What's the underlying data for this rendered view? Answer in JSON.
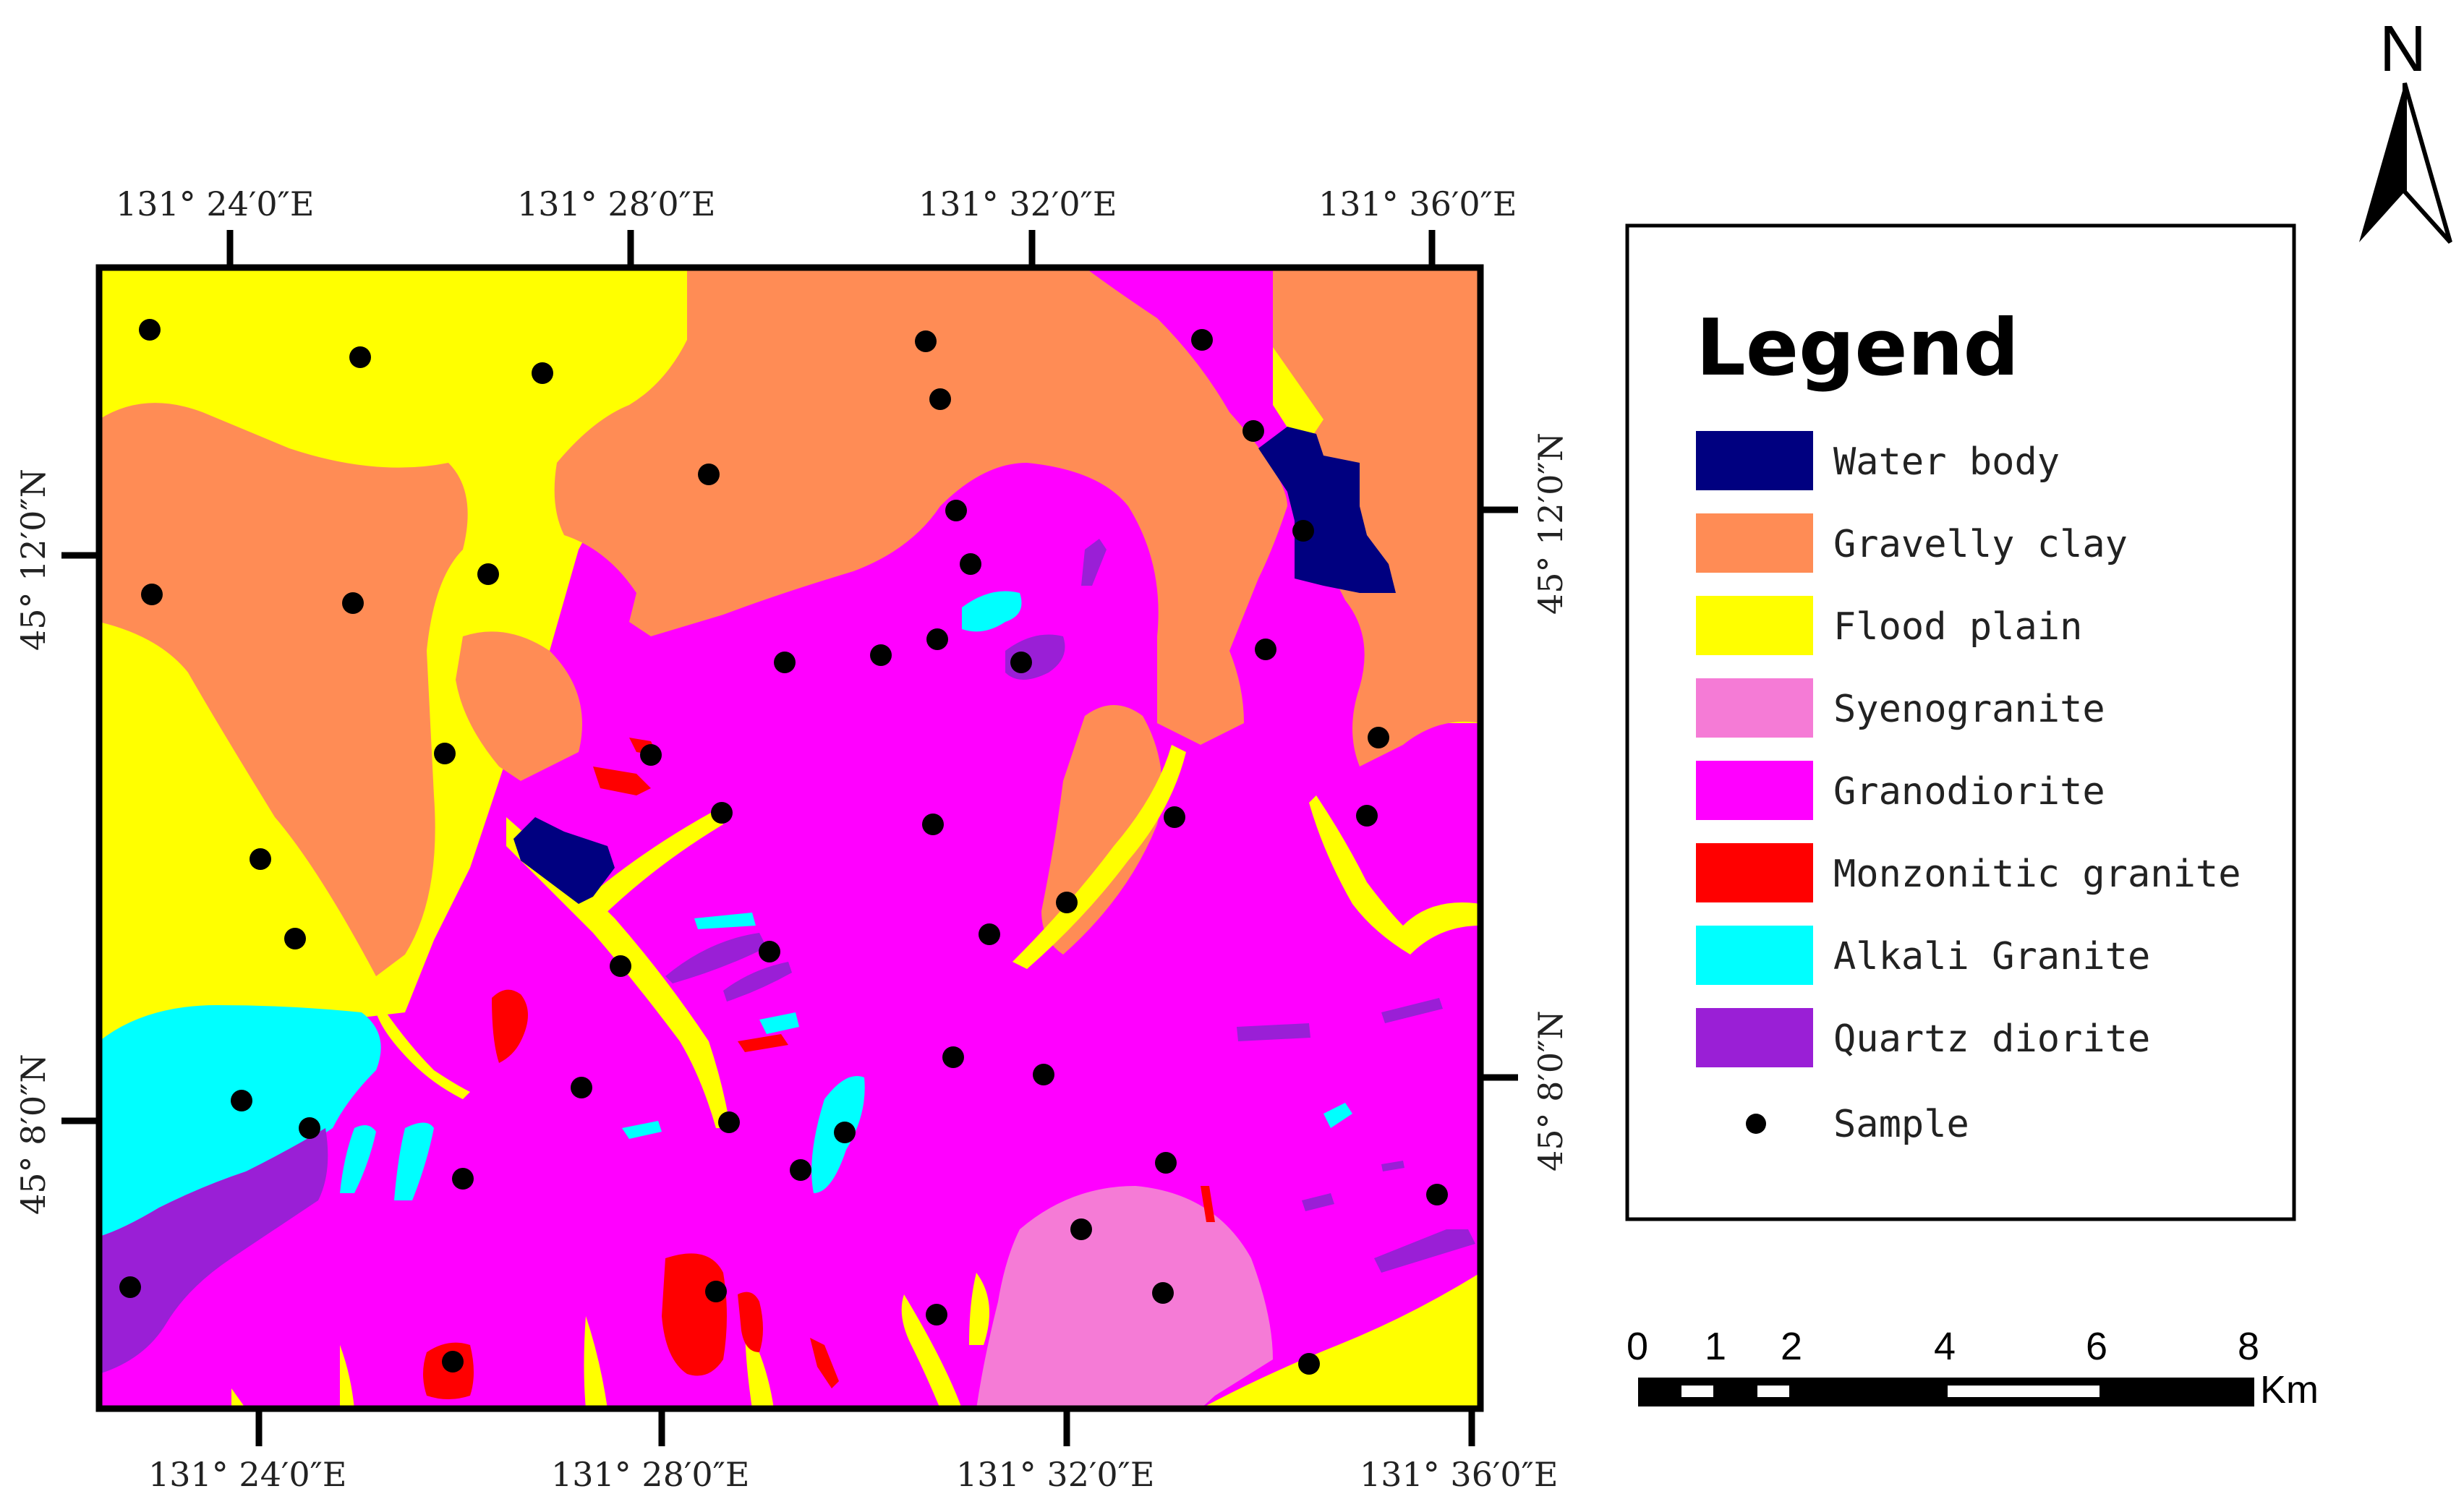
{
  "colors": {
    "water_body": "#000080",
    "gravelly_clay": "#FF8C55",
    "flood_plain": "#FFFF00",
    "syenogranite": "#F57BD6",
    "granodiorite": "#FF00FF",
    "monzonitic_granite": "#FF0000",
    "alkali_granite": "#00FFFF",
    "quartz_diorite": "#9A1FD6",
    "sample": "#000000"
  },
  "coords": {
    "top": [
      "131° 24′0″E",
      "131° 28′0″E",
      "131° 32′0″E",
      "131° 36′0″E"
    ],
    "bottom": [
      "131° 24′0″E",
      "131° 28′0″E",
      "131° 32′0″E",
      "131° 36′0″E"
    ],
    "left": [
      "45° 12′0″N",
      "45° 8′0″N"
    ],
    "right": [
      "45° 12′0″N",
      "45° 8′0″N"
    ]
  },
  "legend": {
    "title": "Legend",
    "items": [
      {
        "label": "Water body",
        "color": "#000080"
      },
      {
        "label": "Gravelly clay",
        "color": "#FF8C55"
      },
      {
        "label": "Flood plain",
        "color": "#FFFF00"
      },
      {
        "label": "Syenogranite",
        "color": "#F57BD6"
      },
      {
        "label": "Granodiorite",
        "color": "#FF00FF"
      },
      {
        "label": "Monzonitic granite",
        "color": "#FF0000"
      },
      {
        "label": "Alkali Granite",
        "color": "#00FFFF"
      },
      {
        "label": "Quartz diorite",
        "color": "#9A1FD6"
      }
    ],
    "sample_label": "Sample"
  },
  "scale_bar": {
    "labels": [
      "0",
      "1",
      "2",
      "4",
      "6",
      "8"
    ],
    "unit": "Km"
  },
  "north_arrow": {
    "label": "N"
  }
}
